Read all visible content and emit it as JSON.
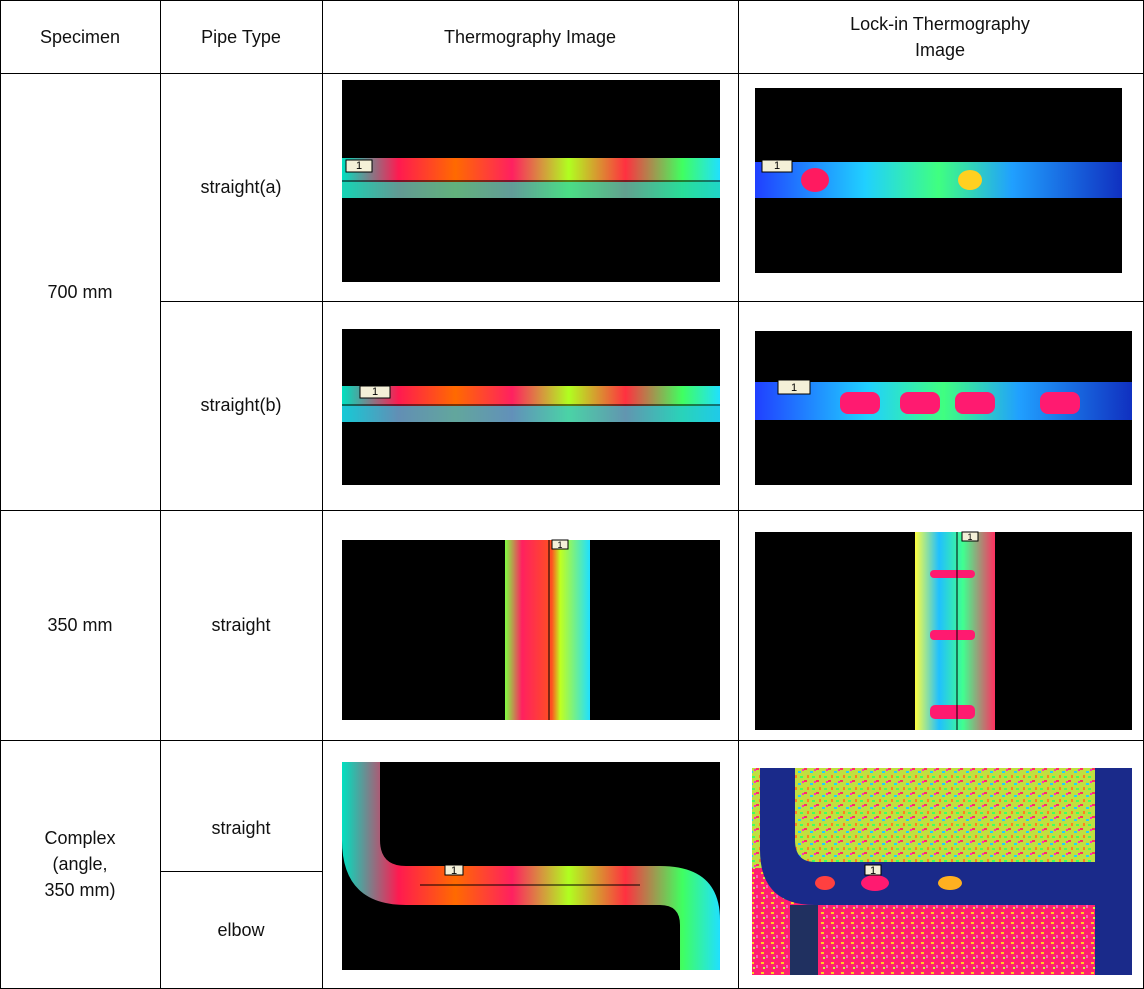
{
  "table": {
    "header": [
      "Specimen",
      "Pipe Type",
      "Thermography Image",
      "Lock-in Thermography Image"
    ],
    "rows": [
      {
        "specimen": "700 mm",
        "pipe_types": [
          "straight(a)",
          "straight(b)"
        ]
      },
      {
        "specimen": "350 mm",
        "pipe_types": [
          "straight"
        ]
      },
      {
        "specimen": "Complex (angle, 350 mm)",
        "pipe_types": [
          "straight",
          "elbow"
        ]
      }
    ]
  },
  "image_marker": "1"
}
